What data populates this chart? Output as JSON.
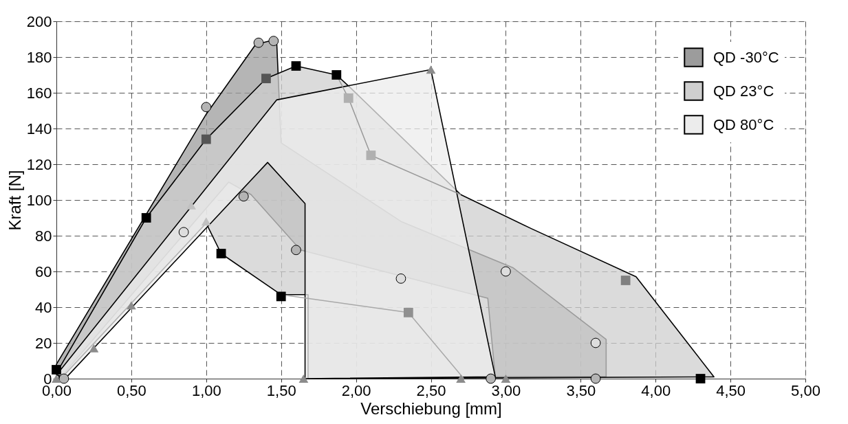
{
  "chart_data": {
    "type": "area",
    "xlabel": "Verschiebung [mm]",
    "ylabel": "Kraft [N]",
    "xlim": [
      0,
      5
    ],
    "xticks": [
      {
        "value": 0,
        "label": "0,00"
      },
      {
        "value": 0.5,
        "label": "0,50"
      },
      {
        "value": 1,
        "label": "1,00"
      },
      {
        "value": 1.5,
        "label": "1,50"
      },
      {
        "value": 2,
        "label": "2,00"
      },
      {
        "value": 2.5,
        "label": "2,50"
      },
      {
        "value": 3,
        "label": "3,00"
      },
      {
        "value": 3.5,
        "label": "3,50"
      },
      {
        "value": 4,
        "label": "4,00"
      },
      {
        "value": 4.5,
        "label": "4,50"
      },
      {
        "value": 5,
        "label": "5,00"
      }
    ],
    "ylim": [
      0,
      200
    ],
    "yticks": [
      0,
      20,
      40,
      60,
      80,
      100,
      120,
      140,
      160,
      180,
      200
    ],
    "grid": true,
    "legend": "top right",
    "series": [
      {
        "name": "QD -30°C",
        "color": "#9c9c9c",
        "x": [
          0,
          1.0,
          1.33,
          1.47,
          1.5,
          2.3,
          3.05,
          3.67,
          3.67,
          2.93,
          2.88,
          1.63,
          1.3,
          1.15,
          0.02
        ],
        "values": [
          8,
          148,
          187,
          190,
          132,
          88,
          62,
          22,
          1,
          1,
          45,
          72,
          103,
          110,
          0
        ]
      },
      {
        "name": "QD  23°C",
        "color": "#cfcfcf",
        "x": [
          0,
          0.6,
          1.0,
          1.4,
          1.6,
          1.87,
          1.96,
          2.7,
          3.17,
          3.87,
          4.39,
          1.68,
          1.68,
          1.5,
          1.1,
          1.0,
          0.03
        ],
        "values": [
          3,
          90,
          134,
          168,
          175,
          170,
          163,
          103,
          84,
          57,
          1,
          0,
          47,
          47,
          70,
          87,
          0
        ]
      },
      {
        "name": "QD  80°C",
        "color": "#ececec",
        "x": [
          0,
          1.47,
          2.5,
          2.93,
          1.66,
          1.66,
          1.41,
          0.07
        ],
        "values": [
          2,
          156,
          173,
          1,
          0,
          98,
          121,
          1
        ]
      },
      {
        "type": "line",
        "color": "#a8a8a8",
        "x": [
          1.5,
          2.35,
          2.72
        ],
        "values": [
          47,
          37,
          0
        ]
      },
      {
        "type": "line",
        "color": "#999999",
        "x": [
          1.87,
          1.95,
          2.1,
          2.7
        ],
        "values": [
          170,
          157,
          125,
          103
        ]
      },
      {
        "type": "scatter",
        "marker": "circle",
        "x": [
          0.05,
          1.0,
          1.35,
          1.45,
          1.25,
          1.6,
          2.9,
          3.6,
          0.85,
          2.3,
          3.0,
          3.6
        ],
        "values": [
          0,
          152,
          188,
          189,
          102,
          72,
          0,
          0,
          82,
          56,
          60,
          20
        ],
        "colors": [
          "#b4b4b4",
          "#b4b4b4",
          "#b4b4b4",
          "#b4b4b4",
          "#b4b4b4",
          "#b4b4b4",
          "#b4b4b4",
          "#b4b4b4",
          "#dddddd",
          "#dddddd",
          "#dddddd",
          "#dddddd"
        ]
      },
      {
        "type": "scatter",
        "marker": "square",
        "x": [
          0,
          0.6,
          1.1,
          1.5,
          1.6,
          1.87,
          4.3,
          1.0,
          1.4,
          3.8,
          2.35,
          1.95,
          2.1
        ],
        "values": [
          5,
          90,
          70,
          46,
          175,
          170,
          0,
          134,
          168,
          55,
          37,
          157,
          125
        ],
        "colors": [
          "#000000",
          "#000000",
          "#000000",
          "#000000",
          "#000000",
          "#000000",
          "#000000",
          "#555555",
          "#555555",
          "#808080",
          "#909090",
          "#b0b0b0",
          "#b0b0b0"
        ]
      },
      {
        "type": "scatter",
        "marker": "triangle",
        "x": [
          0,
          0.25,
          0.5,
          0.9,
          1.0,
          1.65,
          2.5,
          2.7,
          3.0
        ],
        "values": [
          0,
          17,
          41,
          97,
          88,
          0,
          173,
          0,
          0
        ],
        "colors": [
          "#8c8c8c",
          "#8c8c8c",
          "#8c8c8c",
          "#c0c0c0",
          "#c0c0c0",
          "#8c8c8c",
          "#8c8c8c",
          "#8c8c8c",
          "#8c8c8c"
        ]
      }
    ]
  }
}
